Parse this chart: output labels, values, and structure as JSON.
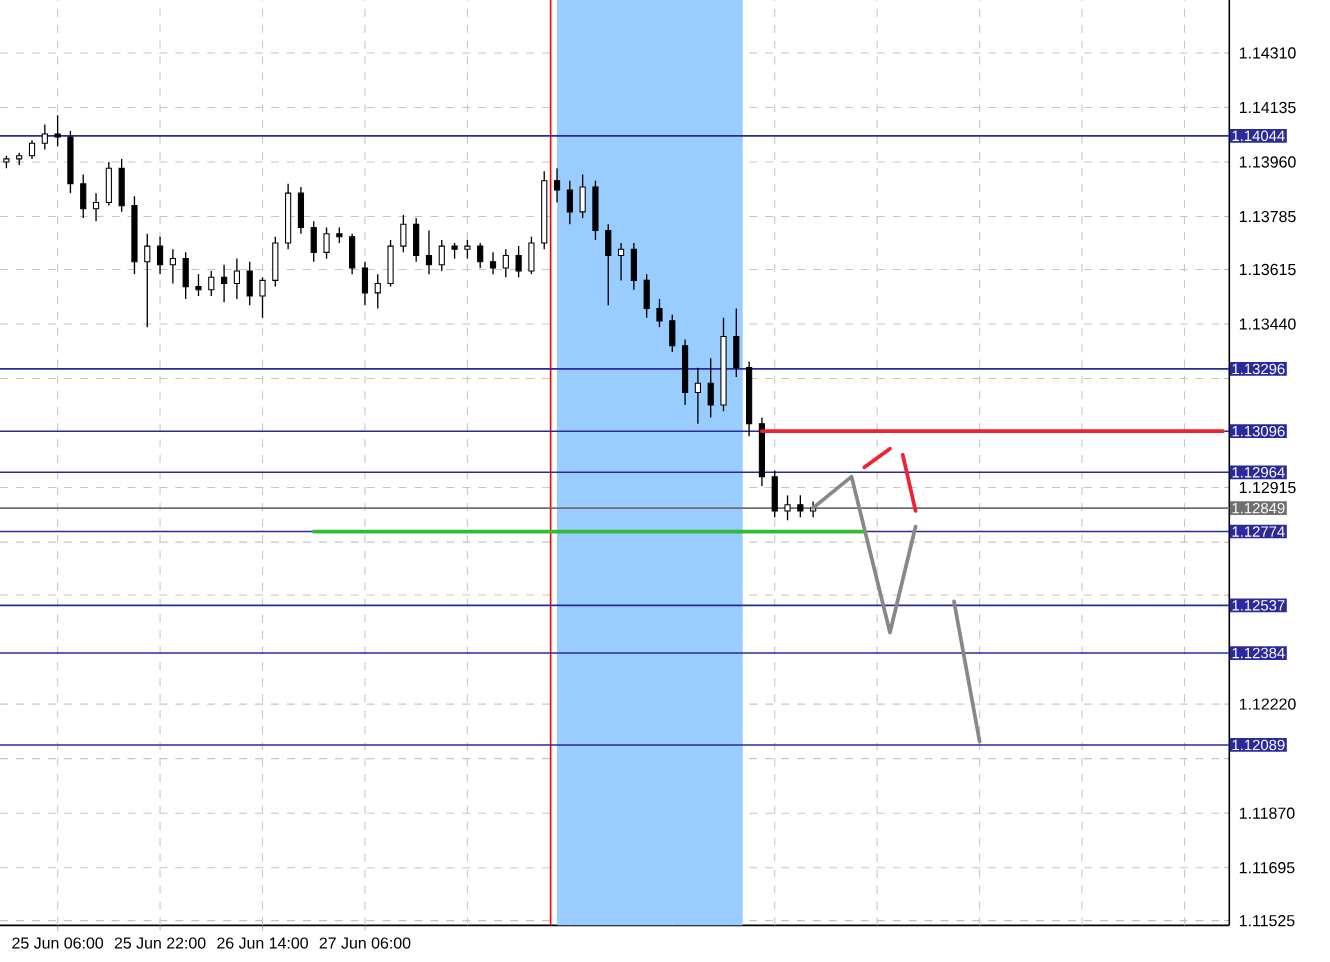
{
  "chart_data": {
    "type": "candlestick",
    "categories": [
      null,
      null,
      null,
      null,
      "25 Jun 06:00",
      null,
      null,
      null,
      null,
      null,
      null,
      null,
      "25 Jun 22:00",
      null,
      null,
      null,
      null,
      null,
      null,
      null,
      "26 Jun 14:00",
      null,
      null,
      null,
      null,
      null,
      null,
      null,
      "27 Jun 06:00",
      null,
      null,
      null,
      null,
      null,
      null,
      null,
      null,
      null,
      null,
      null,
      null,
      null,
      null,
      null,
      null,
      null,
      null,
      null,
      null,
      null,
      null,
      null,
      null,
      null,
      null,
      null,
      null,
      null,
      null,
      null,
      null,
      null,
      null,
      null,
      null,
      null,
      null,
      null,
      null,
      null,
      null,
      null,
      null,
      null,
      null,
      null,
      null,
      null,
      null,
      null,
      null,
      null,
      null,
      null,
      null,
      null,
      null,
      null,
      null,
      null,
      null,
      null,
      null,
      null,
      null,
      null
    ],
    "ohlc": [
      [
        1.1396,
        1.1398,
        1.1394,
        1.1397
      ],
      [
        1.1397,
        1.1399,
        1.1395,
        1.1398
      ],
      [
        1.1398,
        1.1403,
        1.1397,
        1.1402
      ],
      [
        1.1402,
        1.1408,
        1.14,
        1.1405
      ],
      [
        1.1405,
        1.1411,
        1.1401,
        1.1404
      ],
      [
        1.1404,
        1.1406,
        1.1386,
        1.1389
      ],
      [
        1.1389,
        1.1392,
        1.1378,
        1.1381
      ],
      [
        1.1381,
        1.1386,
        1.1377,
        1.1383
      ],
      [
        1.1383,
        1.1396,
        1.1382,
        1.1394
      ],
      [
        1.1394,
        1.1397,
        1.138,
        1.1382
      ],
      [
        1.1382,
        1.1385,
        1.136,
        1.1364
      ],
      [
        1.1364,
        1.1373,
        1.1343,
        1.1369
      ],
      [
        1.1369,
        1.1372,
        1.136,
        1.1363
      ],
      [
        1.1363,
        1.1368,
        1.1357,
        1.1365
      ],
      [
        1.1365,
        1.1367,
        1.1352,
        1.1356
      ],
      [
        1.1356,
        1.136,
        1.1353,
        1.1355
      ],
      [
        1.1355,
        1.1361,
        1.1353,
        1.1359
      ],
      [
        1.1359,
        1.1363,
        1.1351,
        1.1357
      ],
      [
        1.1357,
        1.1365,
        1.1352,
        1.1361
      ],
      [
        1.1361,
        1.1364,
        1.135,
        1.1353
      ],
      [
        1.1353,
        1.1359,
        1.1346,
        1.1358
      ],
      [
        1.1358,
        1.1372,
        1.1356,
        1.137
      ],
      [
        1.137,
        1.1389,
        1.1368,
        1.1386
      ],
      [
        1.1386,
        1.1388,
        1.1373,
        1.1375
      ],
      [
        1.1375,
        1.1377,
        1.1364,
        1.1367
      ],
      [
        1.1367,
        1.1375,
        1.1365,
        1.1373
      ],
      [
        1.1373,
        1.1375,
        1.137,
        1.1372
      ],
      [
        1.1372,
        1.1373,
        1.136,
        1.1362
      ],
      [
        1.1362,
        1.1364,
        1.135,
        1.1354
      ],
      [
        1.1354,
        1.136,
        1.1349,
        1.1357
      ],
      [
        1.1357,
        1.1371,
        1.1356,
        1.1369
      ],
      [
        1.1369,
        1.1379,
        1.1367,
        1.1376
      ],
      [
        1.1376,
        1.1378,
        1.1364,
        1.1366
      ],
      [
        1.1366,
        1.1374,
        1.136,
        1.1363
      ],
      [
        1.1363,
        1.1371,
        1.1361,
        1.1369
      ],
      [
        1.1369,
        1.137,
        1.1365,
        1.1368
      ],
      [
        1.1368,
        1.1371,
        1.1365,
        1.1369
      ],
      [
        1.1369,
        1.137,
        1.1362,
        1.1364
      ],
      [
        1.1364,
        1.1367,
        1.136,
        1.1362
      ],
      [
        1.1362,
        1.1368,
        1.1359,
        1.1366
      ],
      [
        1.1366,
        1.1369,
        1.1359,
        1.1361
      ],
      [
        1.1361,
        1.1372,
        1.136,
        1.137
      ],
      [
        1.137,
        1.1393,
        1.1368,
        1.139
      ],
      [
        1.139,
        1.1394,
        1.1383,
        1.1387
      ],
      [
        1.1387,
        1.139,
        1.1376,
        1.138
      ],
      [
        1.138,
        1.1392,
        1.1378,
        1.1388
      ],
      [
        1.1388,
        1.139,
        1.1371,
        1.1374
      ],
      [
        1.1374,
        1.1376,
        1.135,
        1.1366
      ],
      [
        1.1366,
        1.137,
        1.1358,
        1.1368
      ],
      [
        1.1368,
        1.137,
        1.1355,
        1.1358
      ],
      [
        1.1358,
        1.136,
        1.1346,
        1.1349
      ],
      [
        1.1349,
        1.1352,
        1.1343,
        1.1345
      ],
      [
        1.1345,
        1.1347,
        1.1335,
        1.1337
      ],
      [
        1.1337,
        1.1339,
        1.1318,
        1.1322
      ],
      [
        1.1322,
        1.133,
        1.1312,
        1.1325
      ],
      [
        1.1325,
        1.1333,
        1.1314,
        1.1318
      ],
      [
        1.1318,
        1.1346,
        1.1316,
        1.134
      ],
      [
        1.134,
        1.1349,
        1.1327,
        1.133
      ],
      [
        1.133,
        1.1332,
        1.1308,
        1.1312
      ],
      [
        1.1312,
        1.1314,
        1.1292,
        1.1295
      ],
      [
        1.1295,
        1.1297,
        1.1282,
        1.1284
      ],
      [
        1.1284,
        1.1289,
        1.1281,
        1.1286
      ],
      [
        1.1286,
        1.1289,
        1.1282,
        1.1284
      ],
      [
        1.1284,
        1.1287,
        1.1282,
        1.1285
      ],
      null,
      null,
      null,
      null,
      null,
      null,
      null,
      null,
      null,
      null,
      null,
      null,
      null,
      null,
      null,
      null,
      null,
      null,
      null,
      null,
      null,
      null,
      null,
      null,
      null,
      null,
      null,
      null,
      null,
      null,
      null,
      null
    ],
    "series": [
      {
        "type": "line",
        "color": "#33bb33",
        "values": [
          null,
          null,
          null,
          null,
          null,
          null,
          null,
          null,
          null,
          null,
          null,
          null,
          null,
          null,
          null,
          null,
          null,
          null,
          null,
          null,
          null,
          null,
          null,
          null,
          1.12774,
          1.12774,
          1.12774,
          1.12774,
          1.12774,
          1.12774,
          1.12774,
          1.12774,
          1.12774,
          1.12774,
          1.12774,
          1.12774,
          1.12774,
          1.12774,
          1.12774,
          1.12774,
          1.12774,
          1.12774,
          1.12774,
          1.12774,
          1.12774,
          1.12774,
          1.12774,
          1.12774,
          1.12774,
          1.12774,
          1.12774,
          1.12774,
          1.12774,
          1.12774,
          1.12774,
          1.12774,
          1.12774,
          1.12774,
          1.12774,
          1.12774,
          1.12774,
          1.12774,
          1.12774,
          1.12774,
          1.12774,
          1.12774,
          1.12774,
          1.12774,
          null,
          null,
          null,
          null,
          null,
          null,
          null,
          null,
          null,
          null,
          null,
          null,
          null,
          null,
          null,
          null,
          null,
          null,
          null,
          null,
          null,
          null,
          null,
          null,
          null,
          null,
          null,
          null
        ]
      },
      {
        "type": "line",
        "color": "#ee2233",
        "values": [
          null,
          null,
          null,
          null,
          null,
          null,
          null,
          null,
          null,
          null,
          null,
          null,
          null,
          null,
          null,
          null,
          null,
          null,
          null,
          null,
          null,
          null,
          null,
          null,
          null,
          null,
          null,
          null,
          null,
          null,
          null,
          null,
          null,
          null,
          null,
          null,
          null,
          null,
          null,
          null,
          null,
          null,
          null,
          null,
          null,
          null,
          null,
          null,
          null,
          null,
          null,
          null,
          null,
          null,
          null,
          null,
          null,
          null,
          null,
          1.13096,
          1.13096,
          1.13096,
          1.13096,
          1.13096,
          1.13096,
          1.13096,
          1.13096,
          1.13096,
          1.13096,
          1.13096,
          1.13096,
          1.13096,
          1.13096,
          1.13096,
          1.13096,
          1.13096,
          1.13096,
          1.13096,
          1.13096,
          1.13096,
          1.13096,
          1.13096,
          1.13096,
          1.13096,
          1.13096,
          1.13096,
          1.13096,
          1.13096,
          1.13096,
          1.13096,
          1.13096,
          1.13096,
          1.13096,
          1.13096,
          1.13096,
          1.13096
        ]
      },
      {
        "type": "line",
        "color": "#ee2233",
        "values": [
          null,
          null,
          null,
          null,
          null,
          null,
          null,
          null,
          null,
          null,
          null,
          null,
          null,
          null,
          null,
          null,
          null,
          null,
          null,
          null,
          null,
          null,
          null,
          null,
          null,
          null,
          null,
          null,
          null,
          null,
          null,
          null,
          null,
          null,
          null,
          null,
          null,
          null,
          null,
          null,
          null,
          null,
          null,
          null,
          null,
          null,
          null,
          null,
          null,
          null,
          null,
          null,
          null,
          null,
          null,
          null,
          null,
          null,
          null,
          null,
          null,
          null,
          null,
          null,
          null,
          null,
          null,
          1.1298,
          null,
          1.1304,
          null,
          null,
          null,
          null,
          null,
          null,
          null,
          null,
          null,
          null,
          null,
          null,
          null,
          null,
          null,
          null,
          null,
          null,
          null,
          null,
          null,
          null,
          null,
          null,
          null,
          null
        ]
      },
      {
        "type": "line",
        "color": "#ee2233",
        "values": [
          null,
          null,
          null,
          null,
          null,
          null,
          null,
          null,
          null,
          null,
          null,
          null,
          null,
          null,
          null,
          null,
          null,
          null,
          null,
          null,
          null,
          null,
          null,
          null,
          null,
          null,
          null,
          null,
          null,
          null,
          null,
          null,
          null,
          null,
          null,
          null,
          null,
          null,
          null,
          null,
          null,
          null,
          null,
          null,
          null,
          null,
          null,
          null,
          null,
          null,
          null,
          null,
          null,
          null,
          null,
          null,
          null,
          null,
          null,
          null,
          null,
          null,
          null,
          null,
          null,
          null,
          null,
          null,
          null,
          null,
          1.1302,
          1.1284,
          null,
          null,
          null,
          null,
          null,
          null,
          null,
          null,
          null,
          null,
          null,
          null,
          null,
          null,
          null,
          null,
          null,
          null,
          null,
          null,
          null,
          null,
          null,
          null
        ]
      },
      {
        "type": "line",
        "color": "#888888",
        "values": [
          null,
          null,
          null,
          null,
          null,
          null,
          null,
          null,
          null,
          null,
          null,
          null,
          null,
          null,
          null,
          null,
          null,
          null,
          null,
          null,
          null,
          null,
          null,
          null,
          null,
          null,
          null,
          null,
          null,
          null,
          null,
          null,
          null,
          null,
          null,
          null,
          null,
          null,
          null,
          null,
          null,
          null,
          null,
          null,
          null,
          null,
          null,
          null,
          null,
          null,
          null,
          null,
          null,
          null,
          null,
          null,
          null,
          null,
          null,
          null,
          null,
          null,
          null,
          1.1285,
          null,
          null,
          1.1295,
          null,
          null,
          1.1245,
          null,
          1.1279,
          null,
          null,
          null,
          null,
          null,
          null,
          null,
          null,
          null,
          null,
          null,
          null,
          null,
          null,
          null,
          null,
          null,
          null,
          null,
          null,
          null,
          null,
          null,
          null
        ]
      },
      {
        "type": "line",
        "color": "#888888",
        "values": [
          null,
          null,
          null,
          null,
          null,
          null,
          null,
          null,
          null,
          null,
          null,
          null,
          null,
          null,
          null,
          null,
          null,
          null,
          null,
          null,
          null,
          null,
          null,
          null,
          null,
          null,
          null,
          null,
          null,
          null,
          null,
          null,
          null,
          null,
          null,
          null,
          null,
          null,
          null,
          null,
          null,
          null,
          null,
          null,
          null,
          null,
          null,
          null,
          null,
          null,
          null,
          null,
          null,
          null,
          null,
          null,
          null,
          null,
          null,
          null,
          null,
          null,
          null,
          null,
          null,
          null,
          null,
          null,
          null,
          null,
          null,
          null,
          null,
          null,
          1.1255,
          null,
          1.121,
          null,
          null,
          null,
          null,
          null,
          null,
          null,
          null,
          null,
          null,
          null,
          null,
          null,
          null,
          null,
          null,
          null,
          null,
          null
        ]
      }
    ],
    "ylim": [
      1.1151,
      1.1448
    ],
    "yticks": [
      {
        "value": 1.11525,
        "label": "1.11525"
      },
      {
        "value": 1.11695,
        "label": "1.11695"
      },
      {
        "value": 1.1187,
        "label": "1.11870"
      },
      {
        "value": 1.12045,
        "label": null
      },
      {
        "value": 1.1222,
        "label": "1.12220"
      },
      {
        "value": 1.1257,
        "label": null
      },
      {
        "value": 1.1274,
        "label": null
      },
      {
        "value": 1.12915,
        "label": "1.12915"
      },
      {
        "value": 1.13265,
        "label": null
      },
      {
        "value": 1.1344,
        "label": "1.13440"
      },
      {
        "value": 1.13615,
        "label": "1.13615"
      },
      {
        "value": 1.13785,
        "label": "1.13785"
      },
      {
        "value": 1.1396,
        "label": "1.13960"
      },
      {
        "value": 1.14135,
        "label": "1.14135"
      },
      {
        "value": 1.1431,
        "label": "1.14310"
      }
    ],
    "grid": true,
    "ref_lines": [
      {
        "axis": "y",
        "value": 1.14044,
        "label": "1.14044",
        "color": "#2a2a9a"
      },
      {
        "axis": "y",
        "value": 1.13296,
        "label": "1.13296",
        "color": "#2a2a9a"
      },
      {
        "axis": "y",
        "value": 1.13096,
        "label": "1.13096",
        "color": "#2a2a9a"
      },
      {
        "axis": "y",
        "value": 1.12964,
        "label": "1.12964",
        "color": "#2a2a9a"
      },
      {
        "axis": "y",
        "value": 1.12849,
        "label": "1.12849",
        "color": "#707070"
      },
      {
        "axis": "y",
        "value": 1.12774,
        "label": "1.12774",
        "color": "#2a2a9a"
      },
      {
        "axis": "y",
        "value": 1.12537,
        "label": "1.12537",
        "color": "#2a2a9a"
      },
      {
        "axis": "y",
        "value": 1.12384,
        "label": "1.12384",
        "color": "#2a2a9a"
      },
      {
        "axis": "y",
        "value": 1.12089,
        "label": "1.12089",
        "color": "#2a2a9a"
      }
    ]
  }
}
